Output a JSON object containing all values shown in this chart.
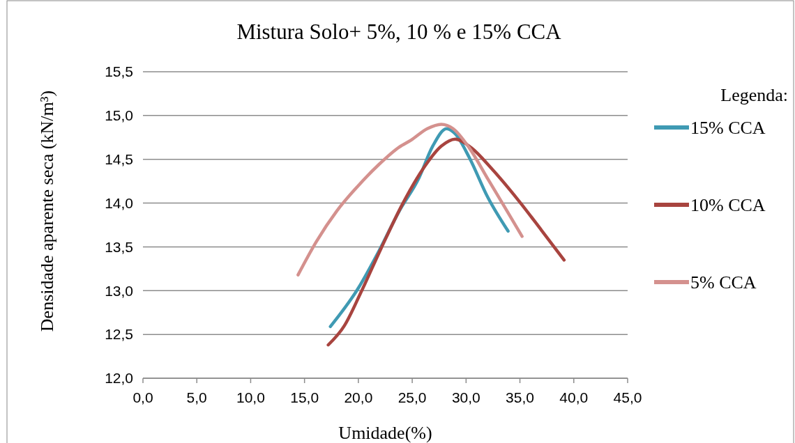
{
  "chart_data": {
    "type": "line",
    "title": "Mistura Solo+ 5%, 10 % e 15% CCA",
    "xlabel": "Umidade(%)",
    "ylabel": "Densidade aparente seca (kN/m³)",
    "legend_title": "Legenda:",
    "legend": "right",
    "grid": "y",
    "line_style": "solid",
    "marker": "none",
    "xlim": [
      0,
      45
    ],
    "xticks": [
      {
        "value": 0,
        "label": "0,0"
      },
      {
        "value": 5,
        "label": "5,0"
      },
      {
        "value": 10,
        "label": "10,0"
      },
      {
        "value": 15,
        "label": "15,0"
      },
      {
        "value": 20,
        "label": "20,0"
      },
      {
        "value": 25,
        "label": "25,0"
      },
      {
        "value": 30,
        "label": "30,0"
      },
      {
        "value": 35,
        "label": "35,0"
      },
      {
        "value": 40,
        "label": "40,0"
      },
      {
        "value": 45,
        "label": "45,0"
      }
    ],
    "ylim": [
      12,
      15.5
    ],
    "yticks": [
      {
        "value": 12,
        "label": "12,0"
      },
      {
        "value": 12.5,
        "label": "12,5"
      },
      {
        "value": 13,
        "label": "13,0"
      },
      {
        "value": 13.5,
        "label": "13,5"
      },
      {
        "value": 14,
        "label": "14,0"
      },
      {
        "value": 14.5,
        "label": "14,5"
      },
      {
        "value": 15,
        "label": "15,0"
      },
      {
        "value": 15.5,
        "label": "15,5"
      }
    ],
    "series": [
      {
        "name": "15% CCA",
        "color": "#3f9ab3",
        "x": [
          17.4,
          20.0,
          21.9,
          23.8,
          25.6,
          26.9,
          28.2,
          29.0,
          30.3,
          32.0,
          33.9
        ],
        "values": [
          12.59,
          13.03,
          13.45,
          13.91,
          14.28,
          14.65,
          14.85,
          14.79,
          14.52,
          14.07,
          13.68
        ]
      },
      {
        "name": "10% CCA",
        "color": "#a8443f",
        "x": [
          17.2,
          18.7,
          20.2,
          22.1,
          24.1,
          26.0,
          27.7,
          29.0,
          30.5,
          32.4,
          35.0,
          37.0,
          39.1
        ],
        "values": [
          12.38,
          12.6,
          12.97,
          13.48,
          13.99,
          14.39,
          14.65,
          14.73,
          14.63,
          14.39,
          14.01,
          13.69,
          13.35
        ]
      },
      {
        "name": "5% CCA",
        "color": "#d4918e",
        "x": [
          14.4,
          16.1,
          18.0,
          20.0,
          21.9,
          23.8,
          24.9,
          26.4,
          27.7,
          28.8,
          30.3,
          32.0,
          33.8,
          35.2
        ],
        "values": [
          13.18,
          13.56,
          13.91,
          14.2,
          14.44,
          14.64,
          14.72,
          14.85,
          14.9,
          14.85,
          14.63,
          14.28,
          13.91,
          13.62
        ]
      }
    ]
  }
}
